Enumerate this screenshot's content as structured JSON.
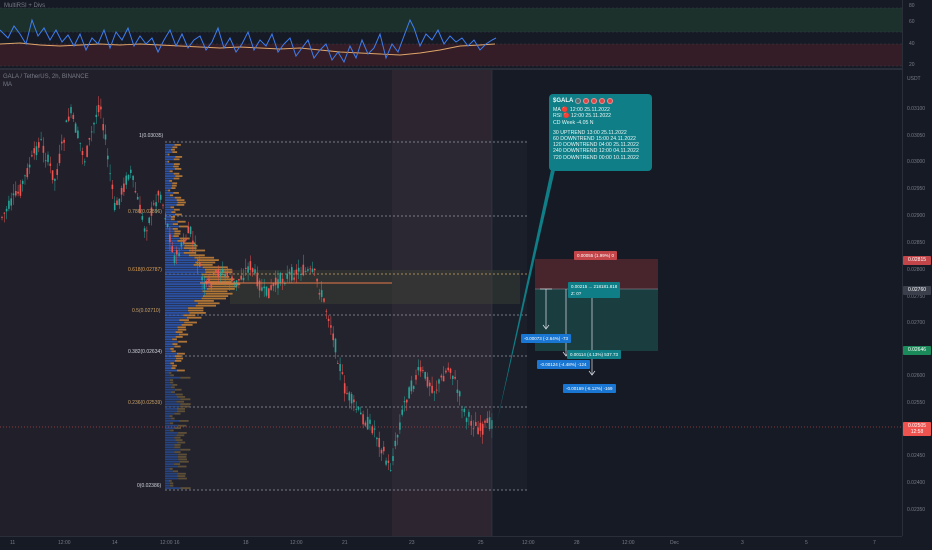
{
  "rsi": {
    "title": "MultiRSI + Divs",
    "axis": [
      "80",
      "60",
      "40",
      "20"
    ]
  },
  "chart": {
    "symbol_line": "GALA / TetherUS, 2h, BINANCE",
    "ma_label": "MA",
    "currency": "USDT",
    "price_axis": [
      "0.03100",
      "0.03050",
      "0.03000",
      "0.02950",
      "0.02900",
      "0.02850",
      "0.02800",
      "0.02750",
      "0.02700",
      "0.02650",
      "0.02600",
      "0.02550",
      "0.02500",
      "0.02450",
      "0.02400",
      "0.02350"
    ],
    "price_tags": {
      "red_top": "0.02815",
      "teal_mid": "0.02760",
      "green": "0.02646",
      "current": "0.02505",
      "current_timer": "12:58"
    },
    "time_axis": [
      "11",
      "12:00",
      "14",
      "12:00",
      "16",
      "18",
      "12:00",
      "21",
      "23",
      "25",
      "12:00",
      "28",
      "12:00",
      "Dec",
      "3",
      "5",
      "7"
    ]
  },
  "fib": {
    "levels": [
      {
        "label": "1(0.03035)",
        "color": "#d1d4dc"
      },
      {
        "label": "0.786(0.02896)",
        "color": "#c9a26a"
      },
      {
        "label": "0.618(0.02787)",
        "color": "#e0a050"
      },
      {
        "label": "0.5(0.02710)",
        "color": "#c9a26a"
      },
      {
        "label": "0.382(0.02634)",
        "color": "#d1d4dc"
      },
      {
        "label": "0.236(0.02539)",
        "color": "#c9a26a"
      },
      {
        "label": "0(0.02386)",
        "color": "#d1d4dc"
      }
    ]
  },
  "position": {
    "stop_badge": "0.00055 (1.99%) 0",
    "entry_badge": "0.00215 ... 218181.818\nZ: 0?",
    "target_badge": "0.00114 (4.13%) 537.73",
    "down1": "-0.00073 (-2.64%) -73",
    "down2": "-0.00124 (-4.48%) -124",
    "down3": "-0.00169 (-6.12%) -169"
  },
  "info": {
    "title": "$GALA",
    "lines_a": [
      "MA  🔴  12:00 25.11.2022",
      "RSI  🔴  12:00 25.11.2022",
      "CD Week  -4.05 N"
    ],
    "lines_b": [
      "30 UPTREND 13:00 25.11.2022",
      "60 DOWNTREND 15:00 24.11.2022",
      "120 DOWNTREND 04:00 25.11.2022",
      "240 DOWNTREND 12:00 04.11.2022",
      "720 DOWNTREND 00:00 10.11.2022"
    ]
  },
  "colors": {
    "up": "#26a69a",
    "down": "#ef5350",
    "rsi_line": "#3f7ef0",
    "rsi_ma": "#e0a66a",
    "teal": "#0f7e86"
  }
}
